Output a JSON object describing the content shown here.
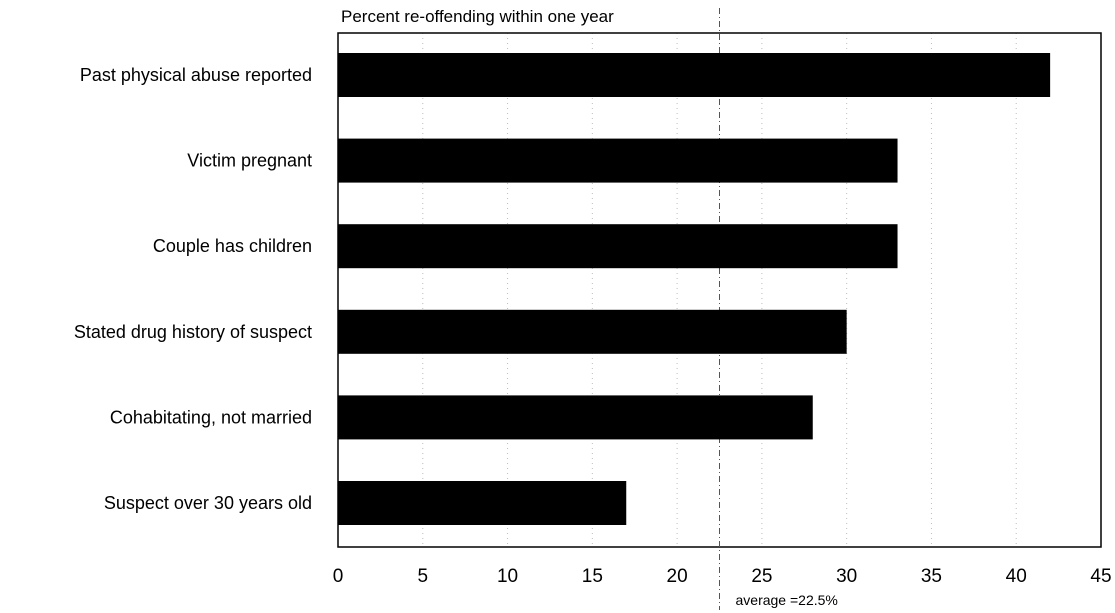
{
  "chart_data": {
    "type": "bar",
    "orientation": "horizontal",
    "title": "Percent re-offending within one year",
    "categories": [
      "Past physical abuse reported",
      "Victim pregnant",
      "Couple has children",
      "Stated drug history of suspect",
      "Cohabitating, not married",
      "Suspect over 30 years old"
    ],
    "values": [
      42,
      33,
      33,
      30,
      28,
      17
    ],
    "xlim": [
      0,
      45
    ],
    "xticks": [
      "0",
      "5",
      "10",
      "15",
      "20",
      "25",
      "30",
      "35",
      "40",
      "45"
    ],
    "grid": "vertical dotted",
    "bar_color": "#000000",
    "reference_line": {
      "value": 22.5,
      "label": "average =22.5%"
    }
  }
}
